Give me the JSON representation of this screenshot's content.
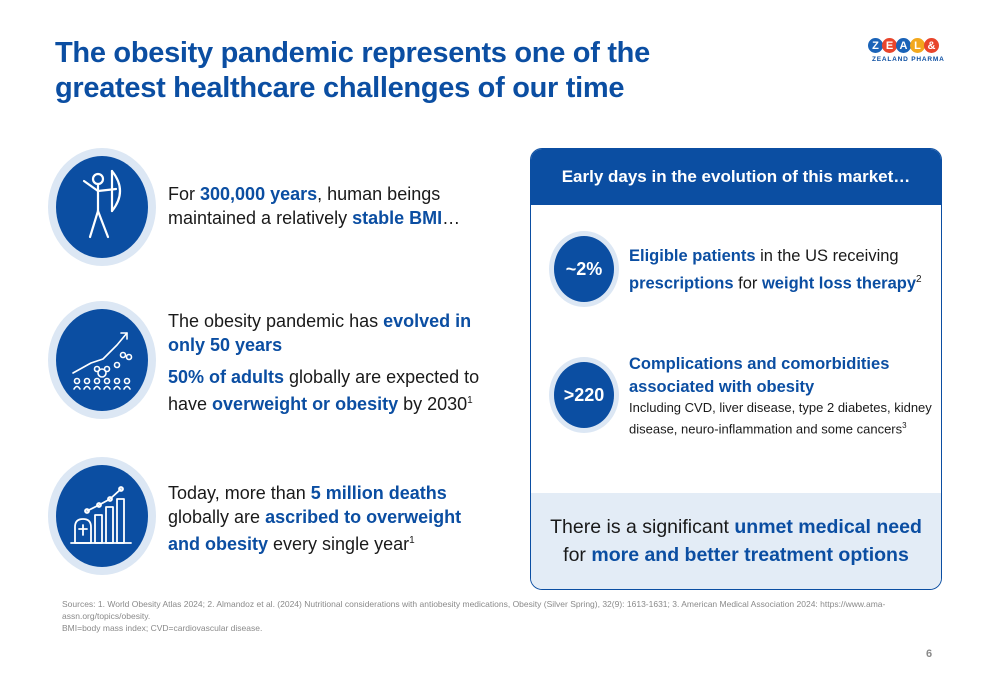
{
  "title": {
    "line1": "The obesity pandemic represents one of the",
    "line2": "greatest healthcare challenges of our time"
  },
  "logo": {
    "letters": [
      "Z",
      "E",
      "A",
      "L",
      "&"
    ],
    "letter_colors": [
      "#1a63b8",
      "#e8452c",
      "#1a63b8",
      "#f2a81d",
      "#e8452c"
    ],
    "subtitle": "ZEALAND PHARMA"
  },
  "rows": [
    {
      "icon": "archer-figure-icon",
      "line1_a": "For ",
      "line1_b": "300,000 years",
      "line1_c": ", human beings",
      "line2_a": "maintained a relatively ",
      "line2_b": "stable BMI",
      "line2_c": "…"
    },
    {
      "icon": "growing-population-chart-icon",
      "p1_a": "The obesity pandemic has ",
      "p1_b": "evolved in",
      "p1_c": "only 50 years",
      "p2_a": "50% of adults",
      "p2_b": " globally are expected to",
      "p2_c": "have ",
      "p2_d": "overweight or obesity",
      "p2_e": " by 2030",
      "p2_sup": "1"
    },
    {
      "icon": "gravestone-bar-chart-icon",
      "a": "Today, more than ",
      "b": "5 million deaths",
      "c": "globally are ",
      "d": "ascribed to overweight",
      "e": "and obesity",
      "f": " every single year",
      "sup": "1"
    }
  ],
  "panel": {
    "header": "Early days in the evolution of this market…",
    "stats": [
      {
        "value": "~2%",
        "a": "Eligible patients",
        "b": " in the US receiving",
        "c": "prescriptions",
        "d": " for ",
        "e": "weight loss therapy",
        "sup": "2"
      },
      {
        "value": ">220",
        "title1": "Complications and comorbidities",
        "title2": "associated with obesity",
        "detail1": "Including CVD, liver disease, type 2 diabetes, kidney",
        "detail2": "disease, neuro-inflammation and some cancers",
        "sup": "3"
      }
    ],
    "footer": {
      "a": "There is a significant ",
      "b": "unmet medical need",
      "c": "for ",
      "d": "more and better treatment options"
    }
  },
  "sources": {
    "line1": "Sources: 1. World Obesity Atlas 2024; 2. Almandoz et al. (2024) Nutritional considerations with antiobesity medications, Obesity (Silver Spring), 32(9): 1613-1631; 3. American Medical Association 2024: https://www.ama-",
    "line2": "assn.org/topics/obesity.",
    "line3": "BMI=body mass index; CVD=cardiovascular disease."
  },
  "page_number": "6"
}
